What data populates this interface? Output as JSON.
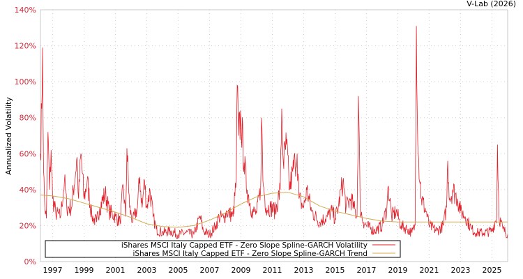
{
  "chart_data": {
    "type": "line",
    "title": "V-Lab (2026)",
    "xlabel": "",
    "ylabel": "Annualized Volatility",
    "xlim": [
      1996.22,
      2026.0
    ],
    "ylim": [
      0,
      140
    ],
    "yticks": [
      0,
      20,
      40,
      60,
      80,
      100,
      120,
      140
    ],
    "ytick_labels": [
      "0%",
      "20%",
      "40%",
      "60%",
      "80%",
      "100%",
      "120%",
      "140%"
    ],
    "xticks": [
      1997,
      1999,
      2001,
      2003,
      2005,
      2007,
      2009,
      2011,
      2013,
      2015,
      2017,
      2019,
      2021,
      2023,
      2025
    ],
    "xtick_labels": [
      "1997",
      "1999",
      "2001",
      "2003",
      "2005",
      "2007",
      "2009",
      "2011",
      "2013",
      "2015",
      "2017",
      "2019",
      "2021",
      "2023",
      "2025"
    ],
    "grid": true,
    "legend_position": "bottom-left",
    "colors": {
      "volatility": "#e0202a",
      "trend": "#d4aa50",
      "tick": "#d62a3a"
    },
    "series": [
      {
        "name": "iShares MSCI Italy Capped ETF - Zero Slope Spline-GARCH Volatility",
        "points": [
          [
            1996.22,
            60
          ],
          [
            1996.3,
            85
          ],
          [
            1996.36,
            119
          ],
          [
            1996.42,
            50
          ],
          [
            1996.5,
            30
          ],
          [
            1996.6,
            24
          ],
          [
            1996.7,
            72
          ],
          [
            1996.8,
            40
          ],
          [
            1996.9,
            62
          ],
          [
            1997.0,
            35
          ],
          [
            1997.2,
            27
          ],
          [
            1997.5,
            25
          ],
          [
            1997.75,
            45
          ],
          [
            1997.9,
            30
          ],
          [
            1998.2,
            30
          ],
          [
            1998.55,
            58
          ],
          [
            1998.65,
            35
          ],
          [
            1998.8,
            60
          ],
          [
            1999.0,
            35
          ],
          [
            1999.2,
            45
          ],
          [
            1999.5,
            25
          ],
          [
            1999.8,
            22
          ],
          [
            2000.0,
            30
          ],
          [
            2000.35,
            38
          ],
          [
            2000.6,
            28
          ],
          [
            2001.0,
            25
          ],
          [
            2001.3,
            22
          ],
          [
            2001.5,
            42
          ],
          [
            2001.65,
            25
          ],
          [
            2001.73,
            63
          ],
          [
            2001.9,
            30
          ],
          [
            2002.1,
            22
          ],
          [
            2002.4,
            30
          ],
          [
            2002.55,
            47
          ],
          [
            2002.7,
            30
          ],
          [
            2002.85,
            45
          ],
          [
            2003.0,
            30
          ],
          [
            2003.2,
            40
          ],
          [
            2003.4,
            25
          ],
          [
            2003.6,
            18
          ],
          [
            2004.0,
            16
          ],
          [
            2004.5,
            17
          ],
          [
            2005.0,
            15
          ],
          [
            2005.5,
            16
          ],
          [
            2006.0,
            15
          ],
          [
            2006.4,
            25
          ],
          [
            2006.6,
            17
          ],
          [
            2007.0,
            15
          ],
          [
            2007.4,
            20
          ],
          [
            2007.6,
            25
          ],
          [
            2007.9,
            24
          ],
          [
            2008.1,
            28
          ],
          [
            2008.5,
            25
          ],
          [
            2008.7,
            45
          ],
          [
            2008.76,
            98
          ],
          [
            2008.85,
            70
          ],
          [
            2009.0,
            80
          ],
          [
            2009.2,
            55
          ],
          [
            2009.4,
            40
          ],
          [
            2009.7,
            28
          ],
          [
            2010.0,
            27
          ],
          [
            2010.25,
            40
          ],
          [
            2010.31,
            80
          ],
          [
            2010.4,
            45
          ],
          [
            2010.6,
            30
          ],
          [
            2010.9,
            30
          ],
          [
            2011.2,
            28
          ],
          [
            2011.5,
            40
          ],
          [
            2011.6,
            85
          ],
          [
            2011.7,
            55
          ],
          [
            2011.9,
            65
          ],
          [
            2012.1,
            40
          ],
          [
            2012.3,
            50
          ],
          [
            2012.45,
            55
          ],
          [
            2012.58,
            60
          ],
          [
            2012.7,
            35
          ],
          [
            2013.0,
            30
          ],
          [
            2013.2,
            40
          ],
          [
            2013.5,
            28
          ],
          [
            2014.0,
            22
          ],
          [
            2014.5,
            25
          ],
          [
            2014.8,
            28
          ],
          [
            2015.0,
            24
          ],
          [
            2015.2,
            30
          ],
          [
            2015.5,
            45
          ],
          [
            2015.7,
            30
          ],
          [
            2016.0,
            35
          ],
          [
            2016.2,
            30
          ],
          [
            2016.4,
            25
          ],
          [
            2016.49,
            92
          ],
          [
            2016.6,
            30
          ],
          [
            2016.8,
            22
          ],
          [
            2017.0,
            20
          ],
          [
            2017.5,
            17
          ],
          [
            2018.0,
            20
          ],
          [
            2018.3,
            30
          ],
          [
            2018.4,
            42
          ],
          [
            2018.6,
            25
          ],
          [
            2018.9,
            28
          ],
          [
            2019.2,
            20
          ],
          [
            2019.6,
            18
          ],
          [
            2019.9,
            16
          ],
          [
            2020.1,
            20
          ],
          [
            2020.18,
            131
          ],
          [
            2020.3,
            60
          ],
          [
            2020.5,
            35
          ],
          [
            2020.8,
            28
          ],
          [
            2021.0,
            20
          ],
          [
            2021.5,
            17
          ],
          [
            2021.9,
            20
          ],
          [
            2022.1,
            30
          ],
          [
            2022.18,
            56
          ],
          [
            2022.3,
            35
          ],
          [
            2022.5,
            40
          ],
          [
            2022.8,
            35
          ],
          [
            2023.0,
            28
          ],
          [
            2023.3,
            25
          ],
          [
            2023.7,
            18
          ],
          [
            2024.0,
            16
          ],
          [
            2024.5,
            16
          ],
          [
            2025.0,
            17
          ],
          [
            2025.3,
            25
          ],
          [
            2025.35,
            65
          ],
          [
            2025.45,
            25
          ],
          [
            2025.7,
            18
          ],
          [
            2026.0,
            15
          ]
        ]
      },
      {
        "name": "iShares MSCI Italy Capped ETF - Zero Slope Spline-GARCH Trend",
        "points": [
          [
            1996.22,
            37
          ],
          [
            1997,
            36.5
          ],
          [
            1998,
            35
          ],
          [
            1999,
            32.5
          ],
          [
            2000,
            30
          ],
          [
            2001,
            27.5
          ],
          [
            2002,
            24.5
          ],
          [
            2003,
            21
          ],
          [
            2004,
            19.5
          ],
          [
            2005,
            19
          ],
          [
            2006,
            20
          ],
          [
            2007,
            23
          ],
          [
            2008,
            27
          ],
          [
            2009,
            32
          ],
          [
            2010,
            36
          ],
          [
            2011,
            38
          ],
          [
            2012,
            38.5
          ],
          [
            2013,
            36
          ],
          [
            2014,
            31
          ],
          [
            2015,
            28
          ],
          [
            2016,
            26
          ],
          [
            2017,
            24
          ],
          [
            2018,
            22.5
          ],
          [
            2019,
            22
          ],
          [
            2020,
            22
          ],
          [
            2022,
            22
          ],
          [
            2024,
            22
          ],
          [
            2026,
            22
          ]
        ]
      }
    ]
  }
}
